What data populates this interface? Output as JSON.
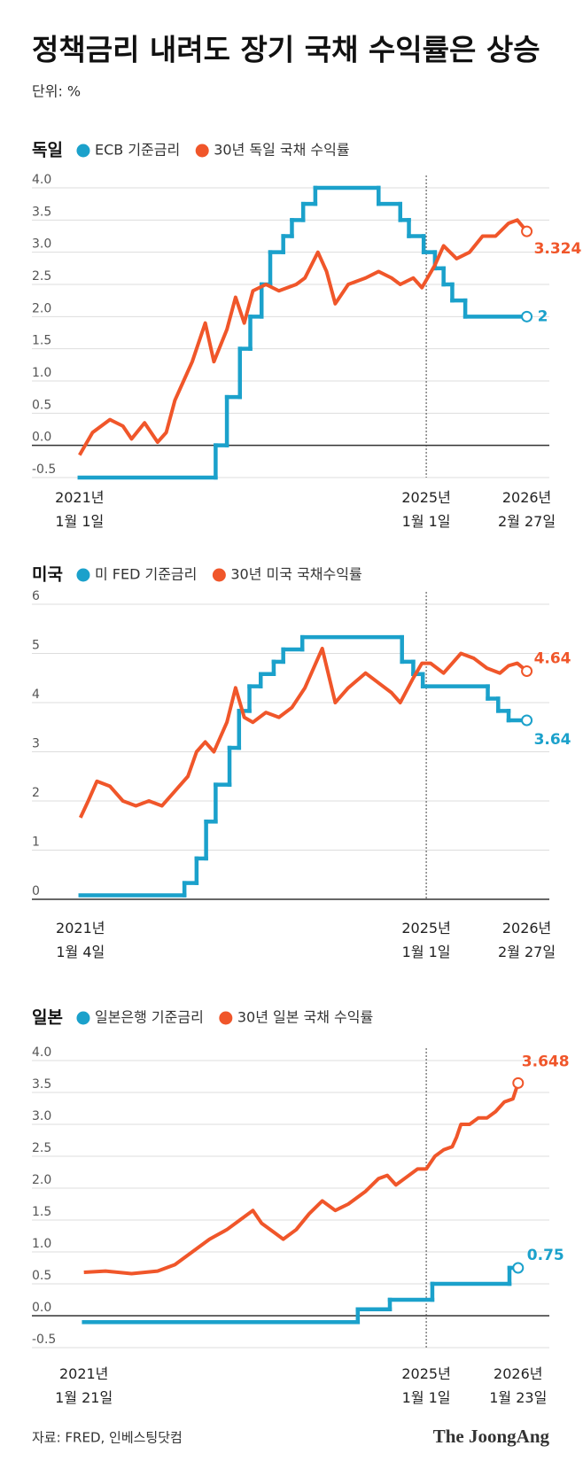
{
  "header": {
    "title": "정책금리 내려도 장기 국채 수익률은 상승",
    "unit": "단위: %"
  },
  "footer": {
    "source": "자료: FRED, 인베스팅닷컴",
    "logo": "The JoongAng"
  },
  "chart_data": [
    {
      "type": "line",
      "title": "독일",
      "grid": true,
      "xlim": [
        2020.45,
        2026.42
      ],
      "ylim": [
        -0.5,
        4.0
      ],
      "xticks": [
        {
          "value": 2021.0,
          "label": "2021년 1월 1일"
        },
        {
          "value": 2025.0,
          "label": "2025년 1월 1일"
        },
        {
          "value": 2026.16,
          "label": "2026년 2월 27일"
        }
      ],
      "yticks": [
        {
          "value": 4,
          "label": "4.0"
        },
        3.5,
        {
          "value": 3,
          "label": "3.0"
        },
        2.5,
        {
          "value": 2,
          "label": "2.0"
        },
        1.5,
        {
          "value": 1,
          "label": "1.0"
        },
        0.5,
        {
          "value": 0,
          "label": "0.0"
        },
        -0.5
      ],
      "series": [
        {
          "name": "ECB 기준금리",
          "color": "#1ba1cb",
          "step": true,
          "x": [
            2021.0,
            2022.57,
            2022.7,
            2022.85,
            2022.97,
            2023.1,
            2023.2,
            2023.35,
            2023.45,
            2023.58,
            2023.72,
            2024.45,
            2024.7,
            2024.8,
            2024.97,
            2025.1,
            2025.2,
            2025.3,
            2025.45,
            2026.16
          ],
          "values": [
            -0.5,
            0,
            0.75,
            1.5,
            2,
            2.5,
            3,
            3.25,
            3.5,
            3.75,
            4,
            3.75,
            3.5,
            3.25,
            3,
            2.75,
            2.5,
            2.25,
            2,
            2
          ]
        },
        {
          "name": "30년 독일 국채 수익률",
          "color": "#f0562a",
          "step": false,
          "x": [
            2021.0,
            2021.15,
            2021.35,
            2021.5,
            2021.6,
            2021.75,
            2021.9,
            2022.0,
            2022.1,
            2022.2,
            2022.3,
            2022.45,
            2022.55,
            2022.7,
            2022.8,
            2022.9,
            2023.0,
            2023.15,
            2023.3,
            2023.5,
            2023.6,
            2023.75,
            2023.85,
            2023.95,
            2024.1,
            2024.3,
            2024.45,
            2024.6,
            2024.7,
            2024.85,
            2024.95,
            2025.1,
            2025.2,
            2025.35,
            2025.5,
            2025.65,
            2025.8,
            2025.95,
            2026.05,
            2026.16
          ],
          "values": [
            -0.15,
            0.2,
            0.4,
            0.3,
            0.1,
            0.35,
            0.05,
            0.2,
            0.7,
            1.0,
            1.3,
            1.9,
            1.3,
            1.8,
            2.3,
            1.9,
            2.4,
            2.5,
            2.4,
            2.5,
            2.6,
            3.0,
            2.7,
            2.2,
            2.5,
            2.6,
            2.7,
            2.6,
            2.5,
            2.6,
            2.45,
            2.8,
            3.1,
            2.9,
            3.0,
            3.25,
            3.25,
            3.45,
            3.5,
            3.324
          ]
        }
      ]
    },
    {
      "type": "line",
      "title": "미국",
      "grid": true,
      "xlim": [
        2020.45,
        2026.42
      ],
      "ylim": [
        0,
        6
      ],
      "xticks": [
        {
          "value": 2021.01,
          "label": "2021년 1월 4일"
        },
        {
          "value": 2025.0,
          "label": "2025년 1월 1일"
        },
        {
          "value": 2026.16,
          "label": "2026년 2월 27일"
        }
      ],
      "yticks": [
        6,
        5,
        4,
        3,
        2,
        1,
        0
      ],
      "series": [
        {
          "name": "미 FED 기준금리",
          "color": "#1ba1cb",
          "step": true,
          "x": [
            2021.01,
            2022.21,
            2022.35,
            2022.46,
            2022.57,
            2022.73,
            2022.84,
            2022.96,
            2023.09,
            2023.24,
            2023.35,
            2023.57,
            2024.72,
            2024.85,
            2024.96,
            2025.71,
            2025.83,
            2025.95,
            2026.16
          ],
          "values": [
            0.08,
            0.33,
            0.83,
            1.58,
            2.33,
            3.08,
            3.83,
            4.33,
            4.58,
            4.83,
            5.08,
            5.33,
            4.83,
            4.58,
            4.33,
            4.08,
            3.83,
            3.64,
            3.64
          ]
        },
        {
          "name": "30년 미국 국채수익률",
          "color": "#f0562a",
          "step": false,
          "x": [
            2021.01,
            2021.1,
            2021.2,
            2021.35,
            2021.5,
            2021.65,
            2021.8,
            2021.95,
            2022.1,
            2022.25,
            2022.35,
            2022.45,
            2022.55,
            2022.7,
            2022.8,
            2022.9,
            2023.0,
            2023.15,
            2023.3,
            2023.45,
            2023.6,
            2023.8,
            2023.95,
            2024.1,
            2024.3,
            2024.45,
            2024.6,
            2024.7,
            2024.85,
            2024.95,
            2025.05,
            2025.2,
            2025.4,
            2025.55,
            2025.7,
            2025.85,
            2025.95,
            2026.05,
            2026.16
          ],
          "values": [
            1.66,
            2.0,
            2.4,
            2.3,
            2.0,
            1.9,
            2.0,
            1.9,
            2.2,
            2.5,
            3.0,
            3.2,
            3.0,
            3.6,
            4.3,
            3.7,
            3.6,
            3.8,
            3.7,
            3.9,
            4.3,
            5.1,
            4.0,
            4.3,
            4.6,
            4.4,
            4.2,
            4.0,
            4.5,
            4.8,
            4.8,
            4.6,
            5.0,
            4.9,
            4.7,
            4.6,
            4.75,
            4.8,
            4.64
          ]
        }
      ]
    },
    {
      "type": "line",
      "title": "일본",
      "grid": true,
      "xlim": [
        2020.45,
        2026.42
      ],
      "ylim": [
        -0.5,
        4.0
      ],
      "xticks": [
        {
          "value": 2021.05,
          "label": "2021년 1월 21일"
        },
        {
          "value": 2025.0,
          "label": "2025년 1월 1일"
        },
        {
          "value": 2026.06,
          "label": "2026년 1월 23일"
        }
      ],
      "yticks": [
        {
          "value": 4,
          "label": "4.0"
        },
        3.5,
        {
          "value": 3,
          "label": "3.0"
        },
        2.5,
        {
          "value": 2,
          "label": "2.0"
        },
        1.5,
        {
          "value": 1,
          "label": "1.0"
        },
        0.5,
        {
          "value": 0,
          "label": "0.0"
        },
        -0.5
      ],
      "series": [
        {
          "name": "일본은행 기준금리",
          "color": "#1ba1cb",
          "step": true,
          "x": [
            2021.05,
            2024.21,
            2024.58,
            2025.07,
            2025.96,
            2026.06
          ],
          "values": [
            -0.1,
            0.1,
            0.25,
            0.5,
            0.75,
            0.75
          ]
        },
        {
          "name": "30년 일본 국채 수익률",
          "color": "#f0562a",
          "step": false,
          "x": [
            2021.05,
            2021.3,
            2021.6,
            2021.9,
            2022.1,
            2022.3,
            2022.5,
            2022.7,
            2022.85,
            2023.0,
            2023.1,
            2023.25,
            2023.35,
            2023.5,
            2023.65,
            2023.8,
            2023.95,
            2024.1,
            2024.3,
            2024.45,
            2024.55,
            2024.65,
            2024.75,
            2024.9,
            2025.0,
            2025.1,
            2025.2,
            2025.3,
            2025.35,
            2025.4,
            2025.5,
            2025.6,
            2025.7,
            2025.8,
            2025.9,
            2026.0,
            2026.06
          ],
          "values": [
            0.68,
            0.7,
            0.66,
            0.7,
            0.8,
            1.0,
            1.2,
            1.35,
            1.5,
            1.65,
            1.45,
            1.3,
            1.2,
            1.35,
            1.6,
            1.8,
            1.65,
            1.75,
            1.95,
            2.15,
            2.2,
            2.05,
            2.15,
            2.3,
            2.3,
            2.5,
            2.6,
            2.65,
            2.8,
            3.0,
            3.0,
            3.1,
            3.1,
            3.2,
            3.35,
            3.4,
            3.648
          ]
        }
      ]
    }
  ]
}
